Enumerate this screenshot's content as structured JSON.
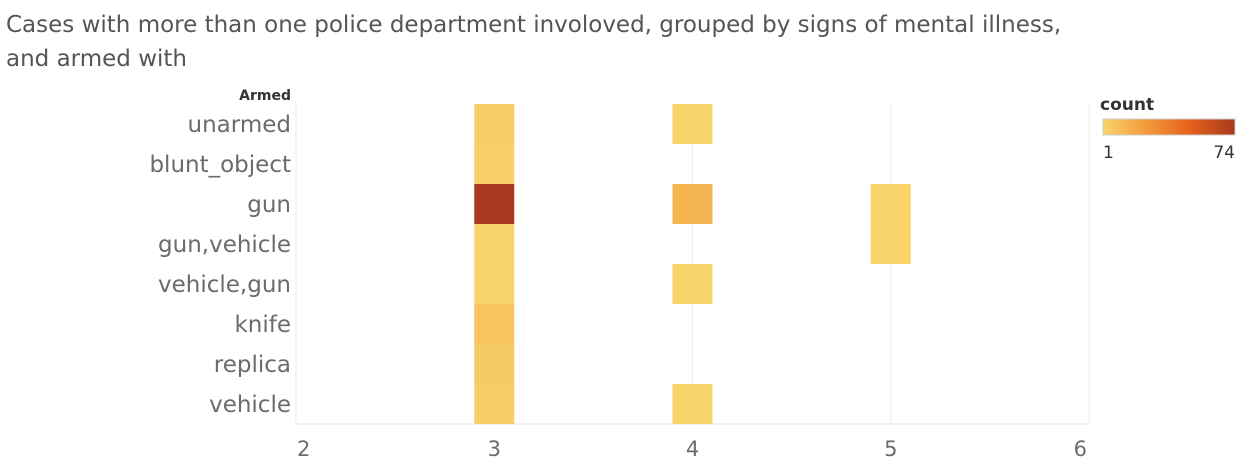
{
  "title": "Cases with more than one police department involoved, grouped by signs of mental illness, and armed with",
  "chart_data": {
    "type": "heatmap",
    "ylabel": "Armed",
    "xlabel": "",
    "rows": [
      "unarmed",
      "blunt_object",
      "gun",
      "gun,vehicle",
      "vehicle,gun",
      "knife",
      "replica",
      "vehicle"
    ],
    "x_ticks": [
      "2",
      "3",
      "4",
      "5",
      "6"
    ],
    "xlim": [
      2,
      6
    ],
    "cells": [
      {
        "row": "unarmed",
        "x": 3,
        "count": 4
      },
      {
        "row": "unarmed",
        "x": 4,
        "count": 2
      },
      {
        "row": "blunt_object",
        "x": 3,
        "count": 3
      },
      {
        "row": "gun",
        "x": 3,
        "count": 74
      },
      {
        "row": "gun",
        "x": 4,
        "count": 14
      },
      {
        "row": "gun",
        "x": 5,
        "count": 2
      },
      {
        "row": "gun,vehicle",
        "x": 3,
        "count": 2
      },
      {
        "row": "gun,vehicle",
        "x": 5,
        "count": 2
      },
      {
        "row": "vehicle,gun",
        "x": 3,
        "count": 2
      },
      {
        "row": "vehicle,gun",
        "x": 4,
        "count": 1
      },
      {
        "row": "knife",
        "x": 3,
        "count": 8
      },
      {
        "row": "replica",
        "x": 3,
        "count": 5
      },
      {
        "row": "vehicle",
        "x": 3,
        "count": 4
      },
      {
        "row": "vehicle",
        "x": 4,
        "count": 2
      }
    ],
    "legend": {
      "title": "count",
      "min": "1",
      "max": "74",
      "position": "top-right"
    },
    "color_scale": [
      "#f8d56b",
      "#f39b3a",
      "#e4611c",
      "#a83a1f"
    ]
  }
}
